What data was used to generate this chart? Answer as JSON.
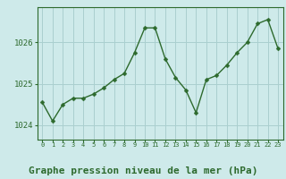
{
  "x": [
    0,
    1,
    2,
    3,
    4,
    5,
    6,
    7,
    8,
    9,
    10,
    11,
    12,
    13,
    14,
    15,
    16,
    17,
    18,
    19,
    20,
    21,
    22,
    23
  ],
  "y": [
    1024.55,
    1024.1,
    1024.5,
    1024.65,
    1024.65,
    1024.75,
    1024.9,
    1025.1,
    1025.25,
    1025.75,
    1026.35,
    1026.35,
    1025.6,
    1025.15,
    1024.85,
    1024.3,
    1025.1,
    1025.2,
    1025.45,
    1025.75,
    1026.0,
    1026.45,
    1026.55,
    1025.85
  ],
  "line_color": "#2d6a2d",
  "marker": "D",
  "marker_size": 2.5,
  "bg_color": "#ceeaea",
  "grid_color": "#aacfcf",
  "xlabel": "Graphe pression niveau de la mer (hPa)",
  "xlabel_fontsize": 8,
  "ytick_labels": [
    "1024",
    "1025",
    "1026"
  ],
  "ytick_values": [
    1024,
    1025,
    1026
  ],
  "ylim": [
    1023.65,
    1026.85
  ],
  "xlim": [
    -0.5,
    23.5
  ]
}
